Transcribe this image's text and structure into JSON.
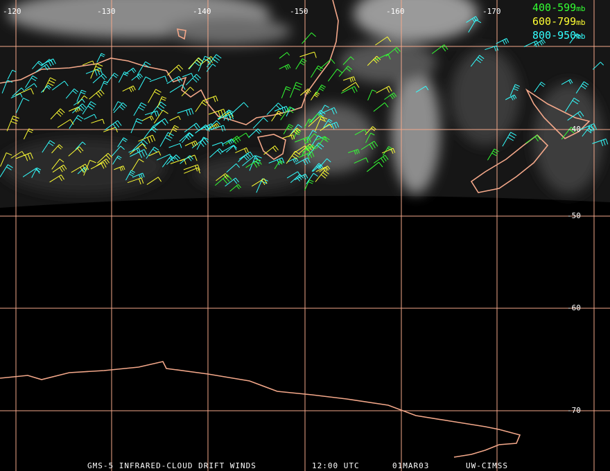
{
  "map": {
    "lon_labels": [
      "-120",
      "-130",
      "-140",
      "-150",
      "-160",
      "-170"
    ],
    "lat_labels": [
      "-40",
      "-50",
      "-60",
      "-70"
    ],
    "legend": [
      {
        "range": "400-599",
        "unit": "mb",
        "color": "#33ff33"
      },
      {
        "range": "600-799",
        "unit": "mb",
        "color": "#ffff33"
      },
      {
        "range": "800-950",
        "unit": "mb",
        "color": "#33ffff"
      }
    ],
    "footer": [
      "GMS-5 INFRARED-CLOUD DRIFT WINDS",
      "12:00 UTC",
      "01MAR03",
      "UW-CIMSS"
    ]
  }
}
